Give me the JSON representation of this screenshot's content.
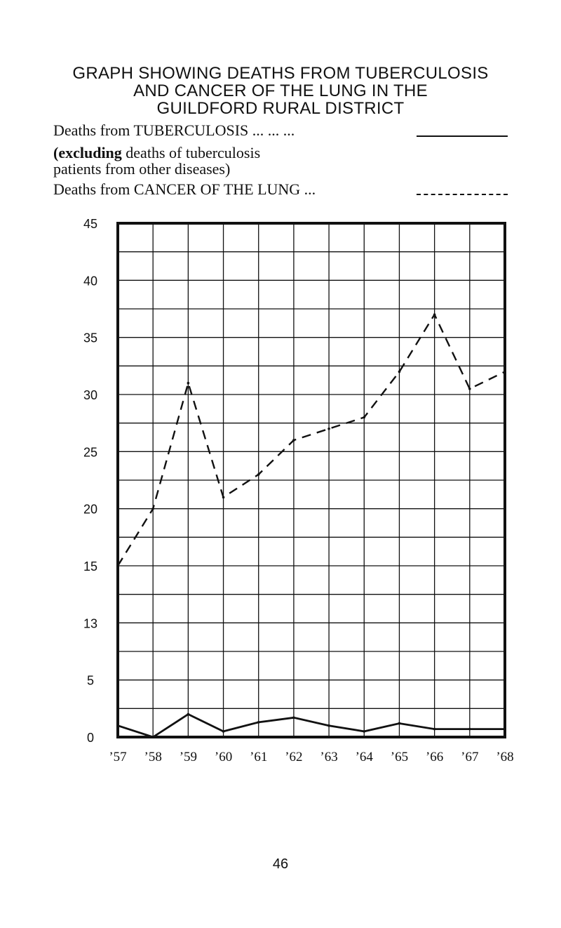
{
  "title_lines": [
    "GRAPH SHOWING DEATHS FROM TUBERCULOSIS",
    "AND CANCER OF THE LUNG IN THE",
    "GUILDFORD RURAL DISTRICT"
  ],
  "legend": {
    "tb_label": "Deaths from TUBERCULOSIS ...   ...   ...",
    "tb_note_bold": "(excluding",
    "tb_note_rest_1": " deaths of tuberculosis",
    "tb_note_rest_2": "patients from other diseases)",
    "cancer_label": "Deaths from CANCER OF THE LUNG   ..."
  },
  "page_number": "46",
  "colors": {
    "ink": "#111111",
    "background": "#ffffff"
  },
  "chart_data": {
    "type": "line",
    "title": "GRAPH SHOWING DEATHS FROM TUBERCULOSIS AND CANCER OF THE LUNG IN THE GUILDFORD RURAL DISTRICT",
    "categories": [
      "’57",
      "’58",
      "’59",
      "’60",
      "’61",
      "’62",
      "’63",
      "’64",
      "’65",
      "’66",
      "’67",
      "’68"
    ],
    "y_tick_labels": [
      "0",
      "5",
      "13",
      "15",
      "20",
      "25",
      "30",
      "35",
      "40",
      "45"
    ],
    "note": "Tick labels as printed; gridlines spaced equally",
    "grid": true,
    "series": [
      {
        "name": "Deaths from TUBERCULOSIS",
        "style": "solid",
        "values": [
          1,
          0,
          2,
          0.5,
          1.3,
          1.7,
          1,
          0.5,
          1.2,
          0.7,
          0.7,
          0.7
        ]
      },
      {
        "name": "Deaths from CANCER OF THE LUNG",
        "style": "dashed",
        "values": [
          15,
          20,
          31,
          21,
          23,
          26,
          27,
          28,
          32,
          37,
          30.5,
          32
        ]
      }
    ]
  }
}
